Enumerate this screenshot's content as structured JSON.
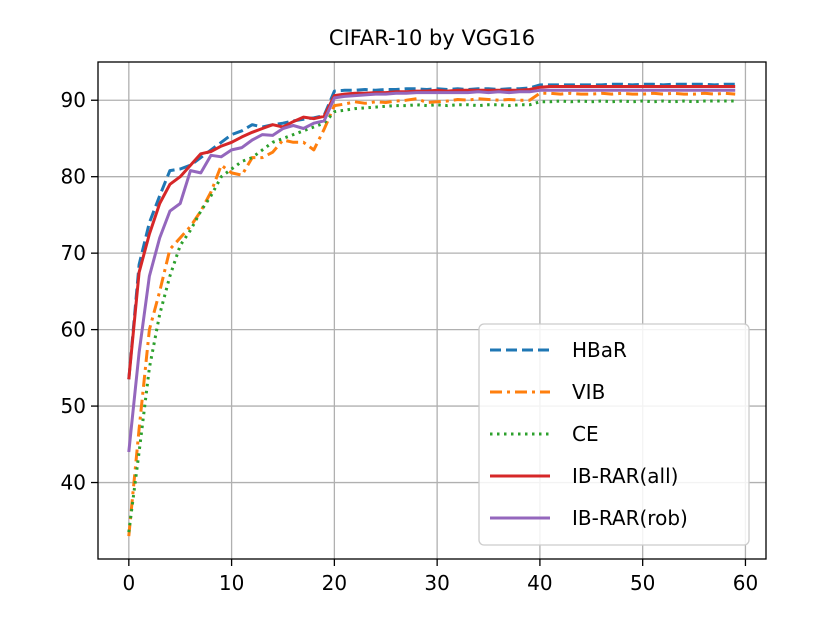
{
  "chart_data": {
    "type": "line",
    "title": "CIFAR-10 by VGG16",
    "xlabel": "",
    "ylabel": "",
    "xlim": [
      -3,
      62
    ],
    "ylim": [
      30,
      95
    ],
    "x_ticks": [
      0,
      10,
      20,
      30,
      40,
      50,
      60
    ],
    "y_ticks": [
      40,
      50,
      60,
      70,
      80,
      90
    ],
    "grid": true,
    "legend_position": "lower-right",
    "x": [
      0,
      1,
      2,
      3,
      4,
      5,
      6,
      7,
      8,
      9,
      10,
      11,
      12,
      13,
      14,
      15,
      16,
      17,
      18,
      19,
      20,
      21,
      22,
      23,
      24,
      25,
      26,
      27,
      28,
      29,
      30,
      31,
      32,
      33,
      34,
      35,
      36,
      37,
      38,
      39,
      40,
      41,
      42,
      43,
      44,
      45,
      46,
      47,
      48,
      49,
      50,
      51,
      52,
      53,
      54,
      55,
      56,
      57,
      58,
      59
    ],
    "series": [
      {
        "name": "HBaR",
        "color": "#1f77b4",
        "dash": "dashed",
        "values": [
          53.5,
          68.5,
          74,
          77.5,
          80.8,
          81,
          81.5,
          82.5,
          83.5,
          84.5,
          85.5,
          86,
          86.8,
          86.5,
          86.8,
          87,
          87.3,
          87.5,
          87.7,
          88,
          91.2,
          91.3,
          91.3,
          91.4,
          91.3,
          91.4,
          91.4,
          91.5,
          91.5,
          91.4,
          91.5,
          91.4,
          91.5,
          91.4,
          91.5,
          91.5,
          91.4,
          91.5,
          91.5,
          91.6,
          92,
          92,
          92,
          92,
          92,
          92,
          92,
          92.1,
          92.1,
          92,
          92.1,
          92.1,
          92,
          92.1,
          92.1,
          92.1,
          92.1,
          92,
          92.1,
          92.1
        ]
      },
      {
        "name": "VIB",
        "color": "#ff7f0e",
        "dash": "dashdot",
        "values": [
          33,
          47,
          60,
          65,
          70.5,
          72,
          73.5,
          75.5,
          78,
          81.5,
          80.5,
          80.2,
          82.5,
          82.5,
          83.2,
          84.8,
          84.5,
          84.5,
          83.5,
          86.2,
          89.3,
          89.5,
          89.8,
          89.6,
          89.8,
          89.7,
          89.9,
          90,
          90.2,
          89.7,
          89.8,
          89.9,
          90.1,
          90,
          90.2,
          90.1,
          90,
          90.1,
          90,
          90,
          90.9,
          90.9,
          90.8,
          90.9,
          90.8,
          90.8,
          90.9,
          90.8,
          90.9,
          90.8,
          90.8,
          90.9,
          90.8,
          90.9,
          90.8,
          90.8,
          90.9,
          90.8,
          90.9,
          90.8
        ]
      },
      {
        "name": "CE",
        "color": "#2ca02c",
        "dash": "dotted",
        "values": [
          33.5,
          44,
          55,
          62,
          67,
          71,
          73,
          75.5,
          77.5,
          80,
          81,
          82,
          82.5,
          83.5,
          84.5,
          85,
          85.5,
          86,
          86.5,
          87,
          88.5,
          88.7,
          88.9,
          89,
          89.1,
          89.2,
          89.3,
          89.3,
          89.4,
          89.3,
          89.4,
          89.3,
          89.4,
          89.4,
          89.3,
          89.4,
          89.4,
          89.3,
          89.4,
          89.4,
          89.8,
          89.8,
          89.9,
          89.8,
          89.9,
          89.8,
          89.9,
          89.8,
          89.9,
          89.8,
          89.9,
          89.8,
          89.9,
          89.8,
          89.9,
          89.8,
          89.9,
          89.9,
          89.9,
          89.9
        ]
      },
      {
        "name": "IB-RAR(all)",
        "color": "#d62728",
        "dash": "solid",
        "values": [
          53.5,
          67.5,
          72.5,
          76.5,
          79,
          80,
          81.5,
          83,
          83.3,
          84,
          84.5,
          85.2,
          85.8,
          86.3,
          86.8,
          86.5,
          87.2,
          87.8,
          87.6,
          87.9,
          90.6,
          90.8,
          90.9,
          90.9,
          91,
          91,
          91.1,
          91.1,
          91.2,
          91.2,
          91.3,
          91.2,
          91.3,
          91.3,
          91.3,
          91.3,
          91.3,
          91.3,
          91.3,
          91.4,
          91.7,
          91.8,
          91.8,
          91.8,
          91.8,
          91.8,
          91.8,
          91.8,
          91.8,
          91.8,
          91.8,
          91.8,
          91.8,
          91.8,
          91.8,
          91.8,
          91.8,
          91.8,
          91.8,
          91.8
        ]
      },
      {
        "name": "IB-RAR(rob)",
        "color": "#9467bd",
        "dash": "solid",
        "values": [
          44,
          57,
          67,
          72,
          75.5,
          76.5,
          80.8,
          80.5,
          82.8,
          82.6,
          83.5,
          83.8,
          84.8,
          85.5,
          85.4,
          86.3,
          86.7,
          86.3,
          87,
          87.3,
          90.3,
          90.5,
          90.6,
          90.7,
          90.8,
          90.8,
          90.9,
          90.9,
          91,
          91,
          91,
          91,
          91,
          91,
          91.1,
          91,
          91.1,
          91,
          91.1,
          91.1,
          91.3,
          91.3,
          91.3,
          91.3,
          91.3,
          91.3,
          91.3,
          91.3,
          91.3,
          91.3,
          91.3,
          91.3,
          91.3,
          91.3,
          91.3,
          91.3,
          91.3,
          91.3,
          91.3,
          91.3
        ]
      }
    ]
  }
}
